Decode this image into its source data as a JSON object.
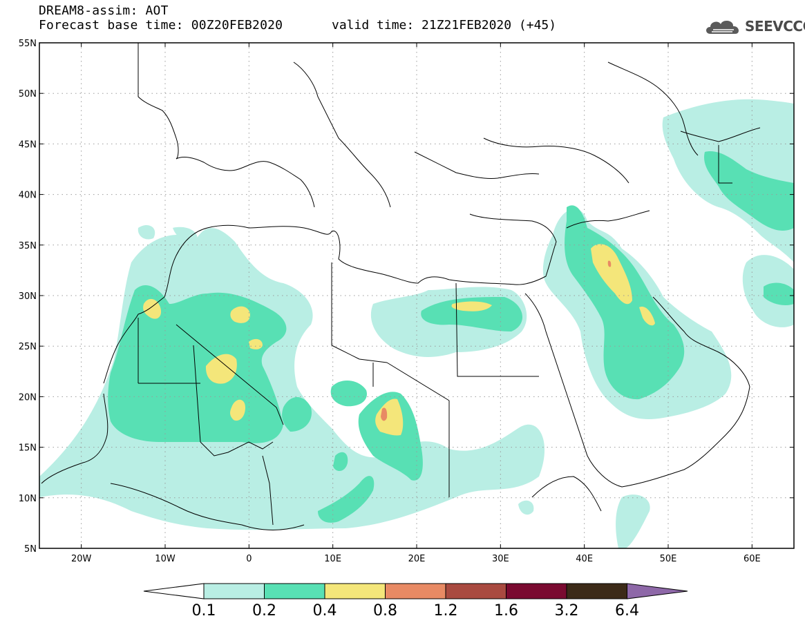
{
  "header": {
    "line1": "DREAM8-assim: AOT",
    "base_time": "Forecast base time: 00Z20FEB2020",
    "valid_time": "valid time: 21Z21FEB2020 (+45)",
    "logo_text": "SEEVCCC"
  },
  "map": {
    "lon_range": [
      -25,
      65
    ],
    "lat_range": [
      5,
      55
    ],
    "lon_ticks": [
      {
        "value": -20,
        "label": "20W"
      },
      {
        "value": -10,
        "label": "10W"
      },
      {
        "value": 0,
        "label": "0"
      },
      {
        "value": 10,
        "label": "10E"
      },
      {
        "value": 20,
        "label": "20E"
      },
      {
        "value": 30,
        "label": "30E"
      },
      {
        "value": 40,
        "label": "40E"
      },
      {
        "value": 50,
        "label": "50E"
      },
      {
        "value": 60,
        "label": "60E"
      }
    ],
    "lat_ticks": [
      {
        "value": 5,
        "label": "5N"
      },
      {
        "value": 10,
        "label": "10N"
      },
      {
        "value": 15,
        "label": "15N"
      },
      {
        "value": 20,
        "label": "20N"
      },
      {
        "value": 25,
        "label": "25N"
      },
      {
        "value": 30,
        "label": "30N"
      },
      {
        "value": 35,
        "label": "35N"
      },
      {
        "value": 40,
        "label": "40N"
      },
      {
        "value": 45,
        "label": "45N"
      },
      {
        "value": 50,
        "label": "50N"
      },
      {
        "value": 55,
        "label": "55N"
      }
    ],
    "grid": true
  },
  "colorbar": {
    "levels": [
      "0.1",
      "0.2",
      "0.4",
      "0.8",
      "1.2",
      "1.6",
      "3.2",
      "6.4"
    ],
    "colors": [
      "#ffffff",
      "#b9eee4",
      "#58e0b4",
      "#f4e67a",
      "#e88a64",
      "#a94a40",
      "#7a0a30",
      "#3c2a18",
      "#8e68a8"
    ]
  },
  "fields": {
    "level1_color": "#b9eee4",
    "level2_color": "#58e0b4",
    "level3_color": "#f4e67a",
    "level4_color": "#e88a64",
    "coast_color": "#000000"
  }
}
